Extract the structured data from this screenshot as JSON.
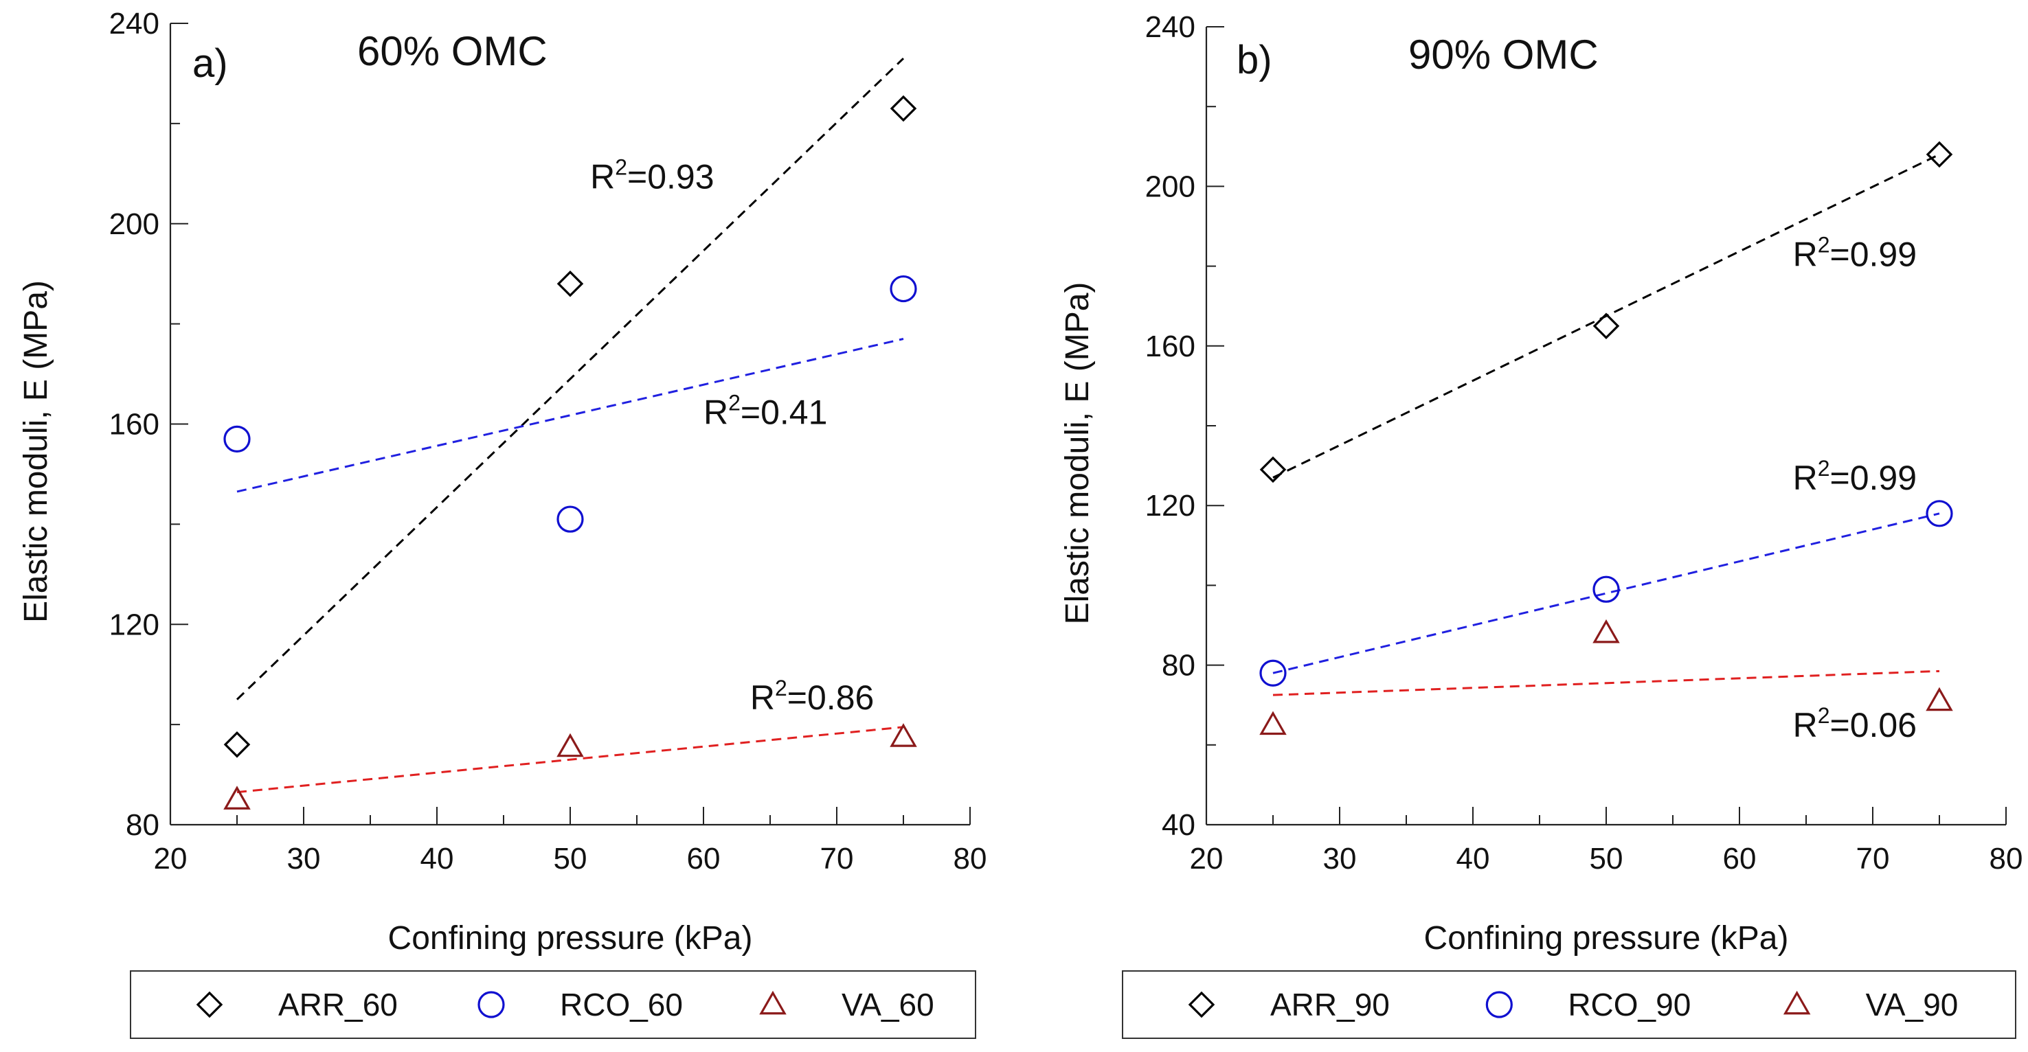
{
  "chart_data": [
    {
      "type": "scatter",
      "panel_label": "a)",
      "title": "60% OMC",
      "xlabel": "Confining pressure (kPa)",
      "ylabel": "Elastic moduli, E (MPa)",
      "xlim": [
        20,
        80
      ],
      "ylim": [
        80,
        240
      ],
      "xticks": [
        20,
        30,
        40,
        50,
        60,
        70,
        80
      ],
      "yticks": [
        80,
        120,
        160,
        200,
        240
      ],
      "series": [
        {
          "name": "ARR_60",
          "marker": "diamond",
          "color": "#000000",
          "line_color": "#000000",
          "x": [
            25,
            50,
            75
          ],
          "y": [
            96,
            188,
            223
          ],
          "fit": {
            "x": [
              25,
              75
            ],
            "y": [
              105,
              233
            ]
          },
          "r2": {
            "prefix": "R",
            "sup": "2",
            "value": "=0.93",
            "x": 51.5,
            "y": 207
          }
        },
        {
          "name": "RCO_60",
          "marker": "circle",
          "color": "#1010d0",
          "line_color": "#2020e0",
          "x": [
            25,
            50,
            75
          ],
          "y": [
            157,
            141,
            187
          ],
          "fit": {
            "x": [
              25,
              75
            ],
            "y": [
              146.5,
              177
            ]
          },
          "r2": {
            "prefix": "R",
            "sup": "2",
            "value": "=0.41",
            "x": 60,
            "y": 160
          }
        },
        {
          "name": "VA_60",
          "marker": "triangle",
          "color": "#8b1a1a",
          "line_color": "#e02020",
          "x": [
            25,
            50,
            75
          ],
          "y": [
            85,
            95.5,
            97.5
          ],
          "fit": {
            "x": [
              25,
              75
            ],
            "y": [
              86.5,
              99.5
            ]
          },
          "r2": {
            "prefix": "R",
            "sup": "2",
            "value": "=0.86",
            "x": 63.5,
            "y": 103
          }
        }
      ]
    },
    {
      "type": "scatter",
      "panel_label": "b)",
      "title": "90% OMC",
      "xlabel": "Confining pressure (kPa)",
      "ylabel": "Elastic moduli, E (MPa)",
      "xlim": [
        20,
        80
      ],
      "ylim": [
        40,
        240
      ],
      "xticks": [
        20,
        30,
        40,
        50,
        60,
        70,
        80
      ],
      "yticks": [
        40,
        80,
        120,
        160,
        200,
        240
      ],
      "series": [
        {
          "name": "ARR_90",
          "marker": "diamond",
          "color": "#000000",
          "line_color": "#000000",
          "x": [
            25,
            50,
            75
          ],
          "y": [
            129,
            165,
            208
          ],
          "fit": {
            "x": [
              25,
              75
            ],
            "y": [
              127,
              208
            ]
          },
          "r2": {
            "prefix": "R",
            "sup": "2",
            "value": "=0.99",
            "x": 64,
            "y": 180
          }
        },
        {
          "name": "RCO_90",
          "marker": "circle",
          "color": "#1010d0",
          "line_color": "#2020e0",
          "x": [
            25,
            50,
            75
          ],
          "y": [
            78,
            99,
            118
          ],
          "fit": {
            "x": [
              25,
              75
            ],
            "y": [
              78,
              118
            ]
          },
          "r2": {
            "prefix": "R",
            "sup": "2",
            "value": "=0.99",
            "x": 64,
            "y": 124
          }
        },
        {
          "name": "VA_90",
          "marker": "triangle",
          "color": "#8b1a1a",
          "line_color": "#e02020",
          "x": [
            25,
            50,
            75
          ],
          "y": [
            65,
            88,
            71
          ],
          "fit": {
            "x": [
              25,
              75
            ],
            "y": [
              72.5,
              78.5
            ]
          },
          "r2": {
            "prefix": "R",
            "sup": "2",
            "value": "=0.06",
            "x": 64,
            "y": 62
          }
        }
      ]
    }
  ]
}
